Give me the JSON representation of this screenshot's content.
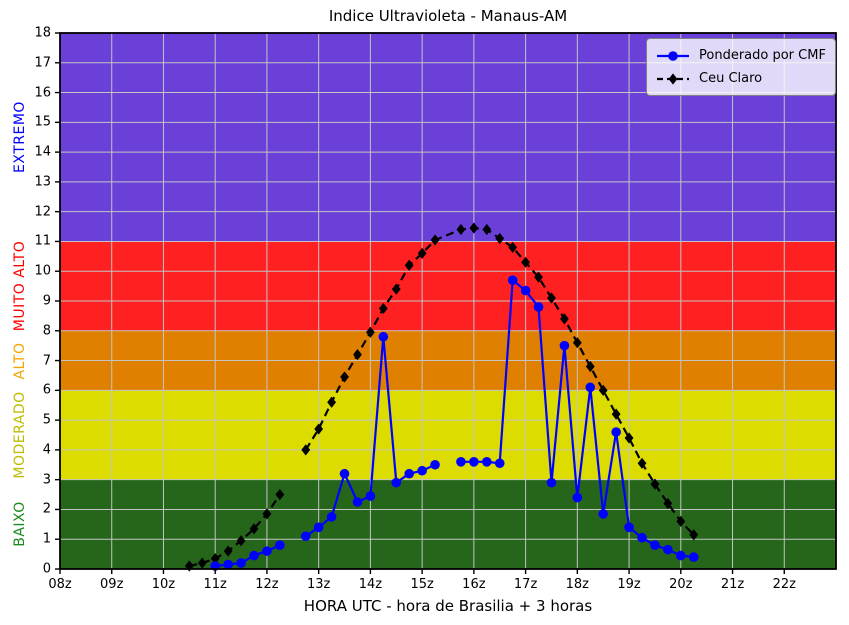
{
  "chart_data": {
    "type": "line",
    "title": "Indice Ultravioleta - Manaus-AM",
    "xlabel": "HORA UTC - hora de Brasilia + 3 horas",
    "ylabel": "",
    "xlim": [
      8,
      23
    ],
    "ylim": [
      0,
      18
    ],
    "grid": true,
    "grid_color": "#c4c4c4",
    "legend_position": "upper right",
    "xticks": [
      {
        "value": 8,
        "label": "08z"
      },
      {
        "value": 9,
        "label": "09z"
      },
      {
        "value": 10,
        "label": "10z"
      },
      {
        "value": 11,
        "label": "11z"
      },
      {
        "value": 12,
        "label": "12z"
      },
      {
        "value": 13,
        "label": "13z"
      },
      {
        "value": 14,
        "label": "14z"
      },
      {
        "value": 15,
        "label": "15z"
      },
      {
        "value": 16,
        "label": "16z"
      },
      {
        "value": 17,
        "label": "17z"
      },
      {
        "value": 18,
        "label": "18z"
      },
      {
        "value": 19,
        "label": "19z"
      },
      {
        "value": 20,
        "label": "20z"
      },
      {
        "value": 21,
        "label": "21z"
      },
      {
        "value": 22,
        "label": "22z"
      }
    ],
    "yticks": [
      0,
      1,
      2,
      3,
      4,
      5,
      6,
      7,
      8,
      9,
      10,
      11,
      12,
      13,
      14,
      15,
      16,
      17,
      18
    ],
    "bands": [
      {
        "label": "BAIXO",
        "from": 0,
        "to": 3,
        "fill": "#25661a",
        "label_color": "#1c8a1c"
      },
      {
        "label": "MODERADO",
        "from": 3,
        "to": 6,
        "fill": "#dcdc00",
        "label_color": "#bcbc00"
      },
      {
        "label": "ALTO",
        "from": 6,
        "to": 8,
        "fill": "#e08000",
        "label_color": "#f5a302"
      },
      {
        "label": "MUITO ALTO",
        "from": 8,
        "to": 11,
        "fill": "#ff2121",
        "label_color": "#ff0000"
      },
      {
        "label": "EXTREMO",
        "from": 11,
        "to": 18,
        "fill": "#6a40d9",
        "label_color": "#0000ff"
      }
    ],
    "series": [
      {
        "name": "Ponderado por CMF",
        "color": "#0000ff",
        "line": "solid",
        "marker": "circle",
        "segments": [
          [
            [
              11.0,
              0.1
            ],
            [
              11.25,
              0.15
            ],
            [
              11.5,
              0.2
            ],
            [
              11.75,
              0.45
            ],
            [
              12.0,
              0.6
            ],
            [
              12.25,
              0.8
            ]
          ],
          [
            [
              12.75,
              1.1
            ],
            [
              13.0,
              1.4
            ],
            [
              13.25,
              1.75
            ],
            [
              13.5,
              3.2
            ],
            [
              13.75,
              2.25
            ],
            [
              14.0,
              2.45
            ],
            [
              14.25,
              7.8
            ],
            [
              14.5,
              2.9
            ],
            [
              14.75,
              3.2
            ],
            [
              15.0,
              3.3
            ],
            [
              15.25,
              3.5
            ]
          ],
          [
            [
              15.75,
              3.6
            ],
            [
              16.0,
              3.6
            ],
            [
              16.25,
              3.6
            ],
            [
              16.5,
              3.55
            ],
            [
              16.75,
              9.7
            ],
            [
              17.0,
              9.35
            ],
            [
              17.25,
              8.8
            ],
            [
              17.5,
              2.9
            ],
            [
              17.75,
              7.5
            ],
            [
              18.0,
              2.4
            ],
            [
              18.25,
              6.1
            ],
            [
              18.5,
              1.85
            ],
            [
              18.75,
              4.6
            ],
            [
              19.0,
              1.4
            ],
            [
              19.25,
              1.05
            ],
            [
              19.5,
              0.8
            ],
            [
              19.75,
              0.65
            ],
            [
              20.0,
              0.45
            ],
            [
              20.25,
              0.4
            ]
          ]
        ]
      },
      {
        "name": "Ceu Claro",
        "color": "#000000",
        "line": "dashed",
        "marker": "diamond",
        "segments": [
          [
            [
              10.5,
              0.1
            ],
            [
              10.75,
              0.2
            ],
            [
              11.0,
              0.35
            ],
            [
              11.25,
              0.6
            ],
            [
              11.5,
              0.95
            ],
            [
              11.75,
              1.35
            ],
            [
              12.0,
              1.85
            ],
            [
              12.25,
              2.5
            ]
          ],
          [
            [
              12.75,
              4.0
            ],
            [
              13.0,
              4.7
            ],
            [
              13.25,
              5.6
            ],
            [
              13.5,
              6.45
            ],
            [
              13.75,
              7.2
            ],
            [
              14.0,
              7.95
            ],
            [
              14.25,
              8.75
            ],
            [
              14.5,
              9.4
            ],
            [
              14.75,
              10.2
            ],
            [
              15.0,
              10.6
            ],
            [
              15.25,
              11.05
            ],
            [
              15.75,
              11.4
            ],
            [
              16.0,
              11.45
            ],
            [
              16.25,
              11.4
            ],
            [
              16.5,
              11.1
            ],
            [
              16.75,
              10.8
            ],
            [
              17.0,
              10.3
            ],
            [
              17.25,
              9.8
            ],
            [
              17.5,
              9.1
            ],
            [
              17.75,
              8.4
            ],
            [
              18.0,
              7.6
            ],
            [
              18.25,
              6.8
            ],
            [
              18.5,
              6.0
            ],
            [
              18.75,
              5.2
            ],
            [
              19.0,
              4.4
            ],
            [
              19.25,
              3.55
            ],
            [
              19.5,
              2.85
            ],
            [
              19.75,
              2.2
            ],
            [
              20.0,
              1.6
            ],
            [
              20.25,
              1.15
            ]
          ]
        ]
      }
    ]
  }
}
